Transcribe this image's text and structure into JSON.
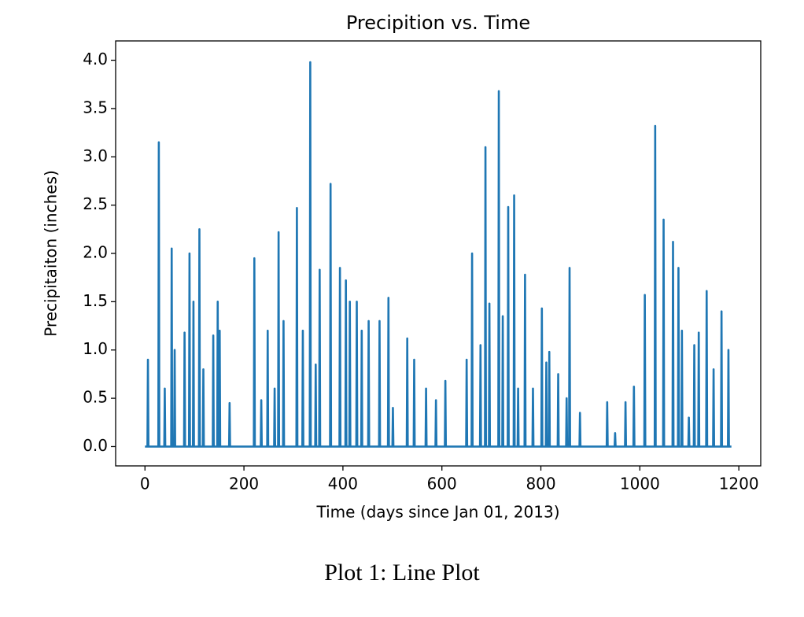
{
  "chart_data": {
    "type": "line",
    "title": "Precipition vs. Time",
    "xlabel": "Time (days since Jan 01, 2013)",
    "ylabel": "Precipitaiton (inches)",
    "caption": "Plot 1: Line Plot",
    "color": "#1f77b4",
    "x": [
      0,
      5,
      6,
      7,
      27,
      28,
      29,
      39,
      40,
      41,
      53,
      54,
      55,
      59,
      60,
      61,
      79,
      80,
      81,
      89,
      90,
      91,
      97,
      98,
      99,
      109,
      110,
      111,
      117,
      118,
      119,
      137,
      138,
      139,
      146,
      147,
      148,
      150,
      151,
      152,
      170,
      171,
      172,
      220,
      221,
      222,
      234,
      235,
      236,
      247,
      248,
      249,
      261,
      262,
      263,
      269,
      270,
      271,
      279,
      280,
      281,
      306,
      307,
      308,
      318,
      319,
      320,
      333,
      334,
      335,
      344,
      345,
      346,
      352,
      353,
      354,
      374,
      375,
      376,
      393,
      394,
      395,
      405,
      406,
      407,
      413,
      414,
      415,
      427,
      428,
      429,
      437,
      438,
      439,
      451,
      452,
      453,
      473,
      474,
      475,
      491,
      492,
      493,
      500,
      501,
      502,
      529,
      530,
      531,
      543,
      544,
      545,
      567,
      568,
      569,
      587,
      588,
      589,
      606,
      607,
      608,
      649,
      650,
      651,
      660,
      661,
      662,
      677,
      678,
      679,
      687,
      688,
      689,
      695,
      696,
      697,
      714,
      715,
      716,
      722,
      723,
      724,
      733,
      734,
      735,
      745,
      746,
      747,
      753,
      754,
      755,
      767,
      768,
      769,
      783,
      784,
      785,
      801,
      802,
      803,
      810,
      811,
      812,
      816,
      817,
      818,
      834,
      835,
      836,
      851,
      852,
      853,
      857,
      858,
      859,
      878,
      879,
      880,
      933,
      934,
      935,
      949,
      950,
      951,
      970,
      971,
      972,
      987,
      988,
      989,
      1009,
      1010,
      1011,
      1030,
      1031,
      1032,
      1047,
      1048,
      1049,
      1066,
      1067,
      1068,
      1077,
      1078,
      1079,
      1084,
      1085,
      1086,
      1098,
      1099,
      1100,
      1109,
      1110,
      1111,
      1118,
      1119,
      1120,
      1134,
      1135,
      1136,
      1148,
      1149,
      1150,
      1164,
      1165,
      1166,
      1178,
      1179,
      1180,
      1185
    ],
    "values": [
      0,
      0,
      0.9,
      0,
      0,
      3.15,
      0,
      0,
      0.6,
      0,
      0,
      2.05,
      0,
      0,
      1.0,
      0,
      0,
      1.18,
      0,
      0,
      2.0,
      0,
      0,
      1.5,
      0,
      0,
      2.25,
      0,
      0,
      0.8,
      0,
      0,
      1.15,
      0,
      0,
      1.5,
      0,
      0,
      1.2,
      0,
      0,
      0.45,
      0,
      0,
      1.95,
      0,
      0,
      0.48,
      0,
      0,
      1.2,
      0,
      0,
      0.6,
      0,
      0,
      2.22,
      0,
      0,
      1.3,
      0,
      0,
      2.47,
      0,
      0,
      1.2,
      0,
      0,
      3.98,
      0,
      0,
      0.85,
      0,
      0,
      1.83,
      0,
      0,
      2.72,
      0,
      0,
      1.85,
      0,
      0,
      1.72,
      0,
      0,
      1.5,
      0,
      0,
      1.5,
      0,
      0,
      1.2,
      0,
      0,
      1.3,
      0,
      0,
      1.3,
      0,
      0,
      1.54,
      0,
      0,
      0.4,
      0,
      0,
      1.12,
      0,
      0,
      0.9,
      0,
      0,
      0.6,
      0,
      0,
      0.48,
      0,
      0,
      0.68,
      0,
      0,
      0.9,
      0,
      0,
      2.0,
      0,
      0,
      1.05,
      0,
      0,
      3.1,
      0,
      0,
      1.48,
      0,
      0,
      3.68,
      0,
      0,
      1.35,
      0,
      0,
      2.48,
      0,
      0,
      2.6,
      0,
      0,
      0.6,
      0,
      0,
      1.78,
      0,
      0,
      0.6,
      0,
      0,
      1.43,
      0,
      0,
      0.87,
      0,
      0,
      0.98,
      0,
      0,
      0.75,
      0,
      0,
      0.5,
      0,
      0,
      1.85,
      0,
      0,
      0.35,
      0,
      0,
      0.46,
      0,
      0,
      0.14,
      0,
      0,
      0.46,
      0,
      0,
      0.62,
      0,
      0,
      1.57,
      0,
      0,
      3.32,
      0,
      0,
      2.35,
      0,
      0,
      2.12,
      0,
      0,
      1.85,
      0,
      0,
      1.2,
      0,
      0,
      0.3,
      0,
      0,
      1.05,
      0,
      0,
      1.18,
      0,
      0,
      1.61,
      0,
      0,
      0.8,
      0,
      0,
      1.4,
      0,
      0,
      1.0,
      0,
      0
    ],
    "xlim": [
      -59.25,
      1244.25
    ],
    "ylim": [
      -0.2,
      4.2
    ],
    "xticks": [
      0,
      200,
      400,
      600,
      800,
      1000,
      1200
    ],
    "yticks": [
      {
        "value": 0,
        "label": "0.0"
      },
      0.5,
      {
        "value": 1,
        "label": "1.0"
      },
      1.5,
      {
        "value": 2,
        "label": "2.0"
      },
      2.5,
      {
        "value": 3,
        "label": "3.0"
      },
      3.5,
      {
        "value": 4,
        "label": "4.0"
      }
    ],
    "grid": false
  }
}
